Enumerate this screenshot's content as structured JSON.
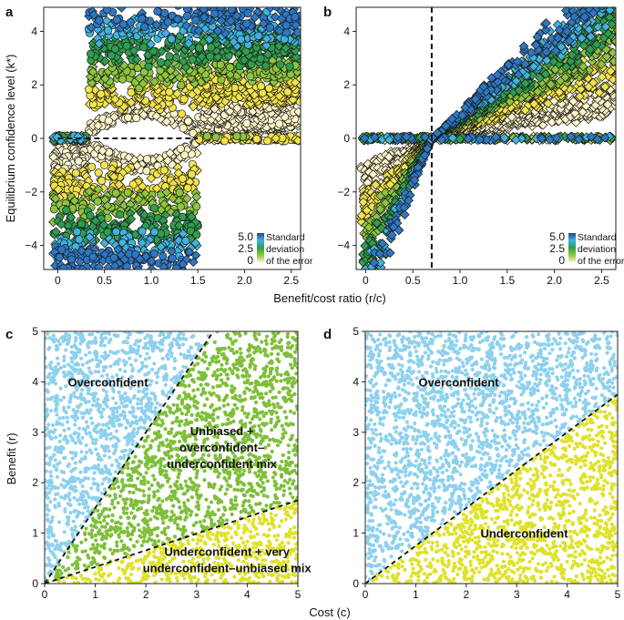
{
  "colors": {
    "blue_dark": "#2b3f8f",
    "blue_mid": "#2e77c4",
    "cyan": "#3fb3df",
    "green": "#2e9e4f",
    "lime": "#8cc63e",
    "yellow": "#f2e34a",
    "cream": "#fff4c8",
    "light_blue_points": "#8ed1ee",
    "green_points": "#7fbf3a",
    "yellow_points": "#dfe22a"
  },
  "x_axis_shared_label": "Benefit/cost ratio (r/c)",
  "y_axis_shared_label": "Equilibrium confidence level (k*)",
  "x_axis_shared_label_cd": "Cost (c)",
  "y_axis_label_cd": "Benefit (r)",
  "chart_data": [
    {
      "panel": "a",
      "type": "scatter",
      "title": "",
      "xlabel": "Benefit/cost ratio (r/c)",
      "ylabel": "Equilibrium confidence level (k*)",
      "xlim": [
        -0.15,
        2.6
      ],
      "ylim": [
        -4.9,
        4.9
      ],
      "xticks": [
        0,
        0.5,
        1.0,
        1.5,
        2.0,
        2.5
      ],
      "xtick_labels": [
        "0",
        "0.5",
        "1.0",
        "1.5",
        "2.0",
        "2.5"
      ],
      "yticks": [
        -4,
        -2,
        0,
        2,
        4
      ],
      "ytick_labels": [
        "−4",
        "−2",
        "0",
        "2",
        "4"
      ],
      "dashed_line": {
        "type": "horizontal",
        "y": 0,
        "x_from": 0,
        "x_to": 1.5
      },
      "regions": [
        {
          "x_range": [
            0,
            0.33
          ],
          "pattern": "unbiased at 0 and underconfident (negative k*)"
        },
        {
          "x_range": [
            0.33,
            1.5
          ],
          "pattern": "overconfident (positive k*) and underconfident mix"
        },
        {
          "x_range": [
            1.5,
            2.6
          ],
          "pattern": "overconfident (positive k*) only"
        }
      ],
      "color_variable": "Standard deviation of the error",
      "legend": {
        "position": "bottom-right",
        "values": [
          "5.0",
          "2.5",
          "0"
        ],
        "labels": [
          "Standard",
          "deviation",
          "of the error"
        ]
      }
    },
    {
      "panel": "b",
      "type": "scatter",
      "title": "",
      "xlabel": "Benefit/cost ratio (r/c)",
      "ylabel": "",
      "xlim": [
        -0.1,
        2.65
      ],
      "ylim": [
        -4.9,
        4.9
      ],
      "xticks": [
        0,
        0.5,
        1.0,
        1.5,
        2.0,
        2.5
      ],
      "xtick_labels": [
        "0",
        "0.5",
        "1.0",
        "1.5",
        "2.0",
        "2.5"
      ],
      "yticks": [
        -4,
        -2,
        0,
        2,
        4
      ],
      "ytick_labels": [
        "−4",
        "−2",
        "0",
        "2",
        "4"
      ],
      "dashed_line": {
        "type": "vertical",
        "x": 0.7
      },
      "pattern": "k* increases with r/c; negative below 0.7, positive above 0.7",
      "color_variable": "Standard deviation of the error",
      "legend": {
        "position": "bottom-right",
        "values": [
          "5.0",
          "2.5",
          "0"
        ],
        "labels": [
          "Standard",
          "deviation",
          "of the error"
        ]
      }
    },
    {
      "panel": "c",
      "type": "scatter",
      "title": "",
      "xlabel": "Cost (c)",
      "ylabel": "Benefit (r)",
      "xlim": [
        0,
        5
      ],
      "ylim": [
        0,
        5
      ],
      "xticks": [
        0,
        1,
        2,
        3,
        4,
        5
      ],
      "xtick_labels": [
        "0",
        "1",
        "2",
        "3",
        "4",
        "5"
      ],
      "yticks": [
        0,
        1,
        2,
        3,
        4,
        5
      ],
      "ytick_labels": [
        "0",
        "1",
        "2",
        "3",
        "4",
        "5"
      ],
      "boundaries": [
        {
          "type": "dashed",
          "slope": 1.5,
          "note": "r = 1.5c"
        },
        {
          "type": "dashed",
          "slope": 0.33,
          "note": "r = 0.33c"
        }
      ],
      "regions": [
        {
          "label": "Overconfident",
          "color": "light_blue",
          "condition": "r/c > 1.5"
        },
        {
          "label_lines": [
            "Unbiased +",
            "overconfident–",
            "underconfident mix"
          ],
          "color": "green",
          "condition": "0.33 < r/c < 1.5"
        },
        {
          "label_lines": [
            "Underconfident + very",
            "underconfident–unbiased mix"
          ],
          "color": "yellow",
          "condition": "r/c < 0.33"
        }
      ]
    },
    {
      "panel": "d",
      "type": "scatter",
      "title": "",
      "xlabel": "Cost (c)",
      "ylabel": "",
      "xlim": [
        0,
        5
      ],
      "ylim": [
        0,
        5
      ],
      "xticks": [
        0,
        1,
        2,
        3,
        4,
        5
      ],
      "xtick_labels": [
        "0",
        "1",
        "2",
        "3",
        "4",
        "5"
      ],
      "yticks": [
        0,
        1,
        2,
        3,
        4,
        5
      ],
      "ytick_labels": [
        "0",
        "1",
        "2",
        "3",
        "4",
        "5"
      ],
      "boundaries": [
        {
          "type": "dashed",
          "slope": 0.75,
          "note": "r = 0.75c"
        }
      ],
      "regions": [
        {
          "label": "Overconfident",
          "color": "light_blue",
          "condition": "r/c > 0.75"
        },
        {
          "label": "Underconfident",
          "color": "yellow",
          "condition": "r/c < 0.75"
        }
      ]
    }
  ]
}
